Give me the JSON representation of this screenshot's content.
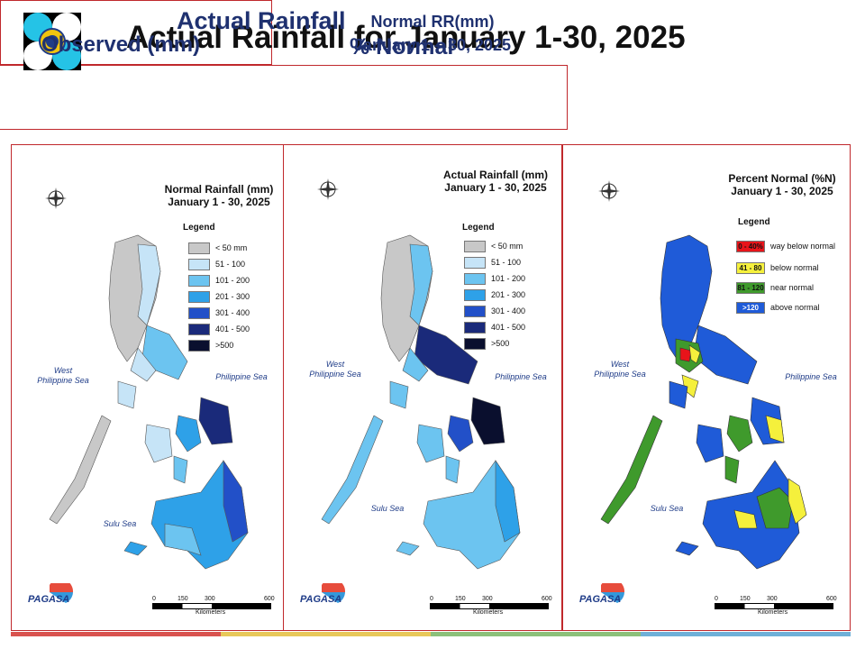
{
  "page": {
    "title": "Actual Rainfall for January 1-30, 2025"
  },
  "header": {
    "left_line1": "Normal RR(mm)",
    "left_line2": "January 1 – 30, 2025",
    "right_title": "Actual Rainfall",
    "right_observed": "Observed (mm)",
    "right_percent": "% Normal"
  },
  "maps": [
    {
      "title_line1": "Normal Rainfall (mm)",
      "title_line2": "January 1 - 30, 2025",
      "legend_title": "Legend",
      "legend": [
        {
          "label": "< 50 mm",
          "color": "#c8c8c8"
        },
        {
          "label": "51 - 100",
          "color": "#c6e4f7"
        },
        {
          "label": "101 - 200",
          "color": "#6cc4f0"
        },
        {
          "label": "201 - 300",
          "color": "#2ea1e8"
        },
        {
          "label": "301 - 400",
          "color": "#2250c8"
        },
        {
          "label": "401 - 500",
          "color": "#1a2a7a"
        },
        {
          "label": ">500",
          "color": "#0a0f2e"
        }
      ],
      "sea_west_line1": "West",
      "sea_west_line2": "Philippine Sea",
      "sea_east": "Philippine Sea",
      "sea_south": "Sulu Sea"
    },
    {
      "title_line1": "Actual Rainfall (mm)",
      "title_line2": "January 1 - 30, 2025",
      "legend_title": "Legend",
      "legend": [
        {
          "label": "< 50 mm",
          "color": "#c8c8c8"
        },
        {
          "label": "51 - 100",
          "color": "#c6e4f7"
        },
        {
          "label": "101 - 200",
          "color": "#6cc4f0"
        },
        {
          "label": "201 - 300",
          "color": "#2ea1e8"
        },
        {
          "label": "301 - 400",
          "color": "#2250c8"
        },
        {
          "label": "401 - 500",
          "color": "#1a2a7a"
        },
        {
          "label": ">500",
          "color": "#0a0f2e"
        }
      ],
      "sea_west_line1": "West",
      "sea_west_line2": "Philippine Sea",
      "sea_east": "Philippine Sea",
      "sea_south": "Sulu Sea"
    },
    {
      "title_line1": "Percent Normal (%N)",
      "title_line2": "January 1 - 30, 2025",
      "legend_title": "Legend",
      "legend": [
        {
          "swatch": "0 - 40%",
          "label": "way below normal",
          "color": "#e8141a"
        },
        {
          "swatch": "41 - 80",
          "label": "below normal",
          "color": "#f5f03c"
        },
        {
          "swatch": "81 - 120",
          "label": "near normal",
          "color": "#3f9a2c"
        },
        {
          "swatch": ">120",
          "label": "above normal",
          "color": "#1f5bd8"
        }
      ],
      "sea_west_line1": "West",
      "sea_west_line2": "Philippine Sea",
      "sea_east": "Philippine Sea",
      "sea_south": "Sulu Sea"
    }
  ],
  "scale": {
    "ticks": [
      "0",
      "150",
      "300",
      "600"
    ],
    "unit": "Kilometers"
  },
  "compass": {
    "n": "N",
    "s": "S",
    "e": "E",
    "w": "W"
  },
  "footer": {
    "logo_text": "PAGASA",
    "strip_colors": [
      "#d9534f",
      "#e8c85a",
      "#8cc07a",
      "#6fb0d8"
    ]
  }
}
